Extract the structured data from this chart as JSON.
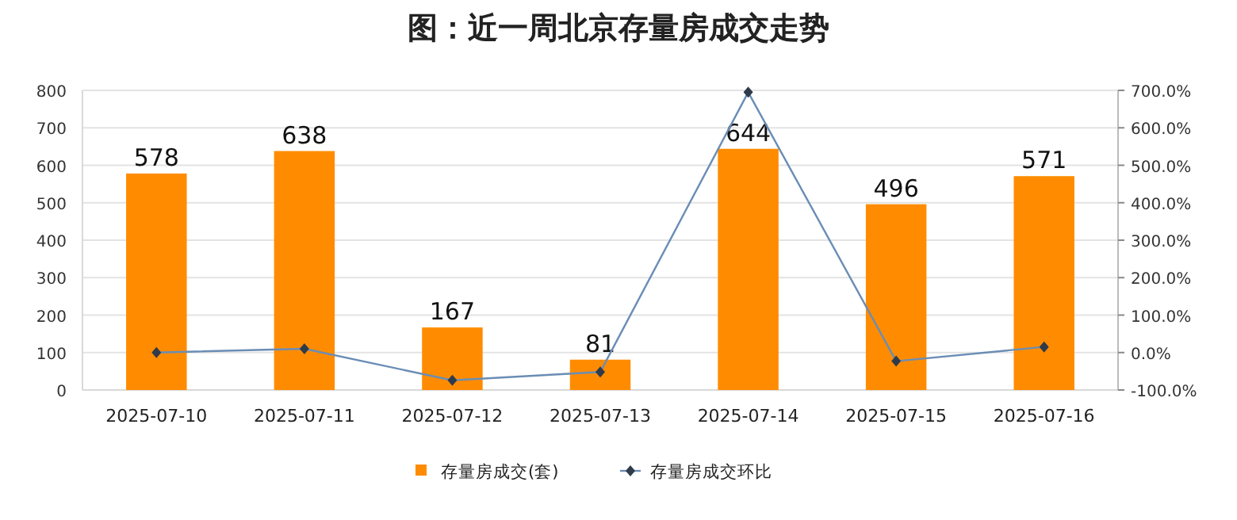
{
  "chart_data": {
    "type": "bar",
    "title": "图：近一周北京存量房成交走势",
    "categories": [
      "2025-07-10",
      "2025-07-11",
      "2025-07-12",
      "2025-07-13",
      "2025-07-14",
      "2025-07-15",
      "2025-07-16"
    ],
    "series": [
      {
        "name": "存量房成交(套)",
        "color": "#ff8c00",
        "values": [
          578,
          638,
          167,
          81,
          644,
          496,
          571
        ],
        "value_labels": [
          "578",
          "638",
          "167",
          "81",
          "644",
          "496",
          "571"
        ]
      },
      {
        "type": "line",
        "axis": "y2",
        "name": "存量房成交环比",
        "color": "#6a8db5",
        "marker": "diamond",
        "values": [
          0,
          10,
          -74,
          -52,
          695,
          -23,
          15
        ]
      }
    ],
    "ylim": [
      0,
      800
    ],
    "yticks": [
      0,
      100,
      200,
      300,
      400,
      500,
      600,
      700,
      800
    ],
    "y2lim": [
      -100,
      700
    ],
    "y2ticks": [
      {
        "value": -100,
        "label": "-100.0%"
      },
      {
        "value": 0,
        "label": "0.0%"
      },
      {
        "value": 100,
        "label": "100.0%"
      },
      {
        "value": 200,
        "label": "200.0%"
      },
      {
        "value": 300,
        "label": "300.0%"
      },
      {
        "value": 400,
        "label": "400.0%"
      },
      {
        "value": 500,
        "label": "500.0%"
      },
      {
        "value": 600,
        "label": "600.0%"
      },
      {
        "value": 700,
        "label": "700.0%"
      }
    ],
    "grid": "y",
    "legend": "bottom"
  }
}
